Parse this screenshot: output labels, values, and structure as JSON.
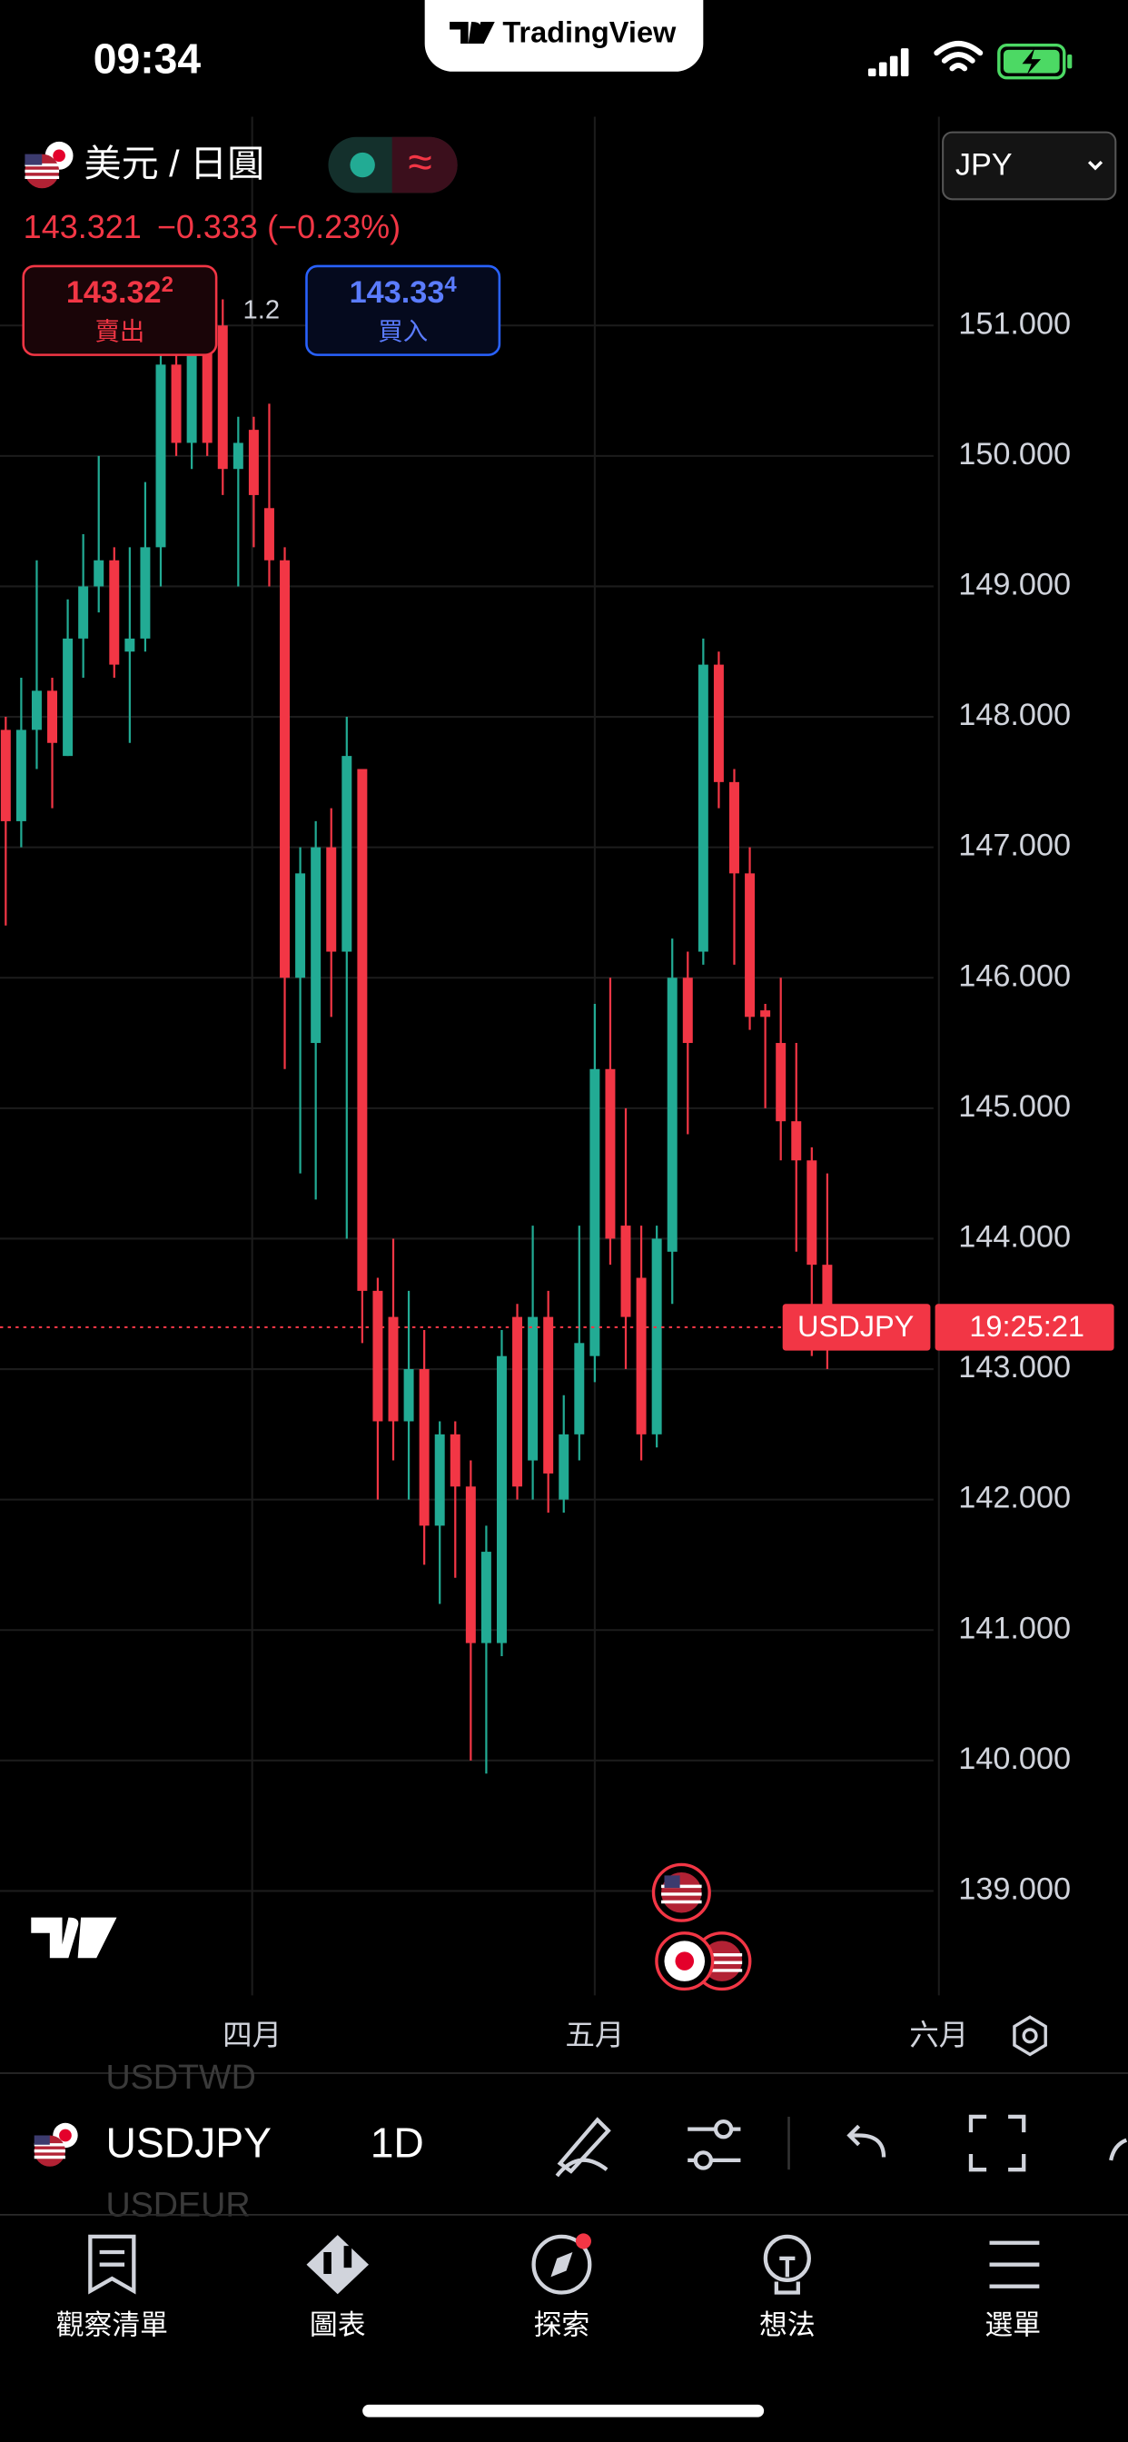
{
  "status_bar": {
    "time": "09:34"
  },
  "notch": {
    "brand": "TradingView"
  },
  "header": {
    "symbol_name": "美元 / 日圓",
    "change": "−0.333",
    "change_percent": "(−0.23%)",
    "sell": {
      "price": "143.32",
      "pip": "2",
      "label": "賣出"
    },
    "spread": "1.2",
    "buy": {
      "price": "143.33",
      "pip": "4",
      "label": "買入"
    },
    "currency": "JPY"
  },
  "chart_data": {
    "type": "candlestick",
    "open": [
      147.9,
      147.2,
      147.9,
      148.2,
      147.7,
      148.6,
      149.0,
      149.2,
      148.5,
      148.6,
      149.3,
      150.7,
      150.1,
      150.8,
      151.0,
      149.9,
      150.2,
      149.6,
      149.2,
      146.0,
      145.5,
      147.0,
      146.2,
      147.6,
      143.6,
      143.4,
      142.6,
      143.0,
      141.8,
      142.5,
      142.1,
      140.9,
      140.9,
      143.4,
      142.3,
      143.4,
      142.0,
      142.5,
      143.1,
      145.3,
      144.1,
      143.7,
      142.5,
      143.9,
      146.0,
      146.2,
      148.4,
      147.5,
      146.8,
      145.75,
      145.5,
      144.9,
      144.6,
      143.8
    ],
    "high": [
      148.0,
      148.3,
      149.2,
      148.3,
      148.9,
      149.4,
      150.0,
      149.3,
      149.3,
      149.8,
      150.9,
      151.2,
      150.9,
      151.2,
      151.2,
      150.3,
      150.3,
      150.4,
      149.3,
      147.0,
      147.2,
      147.3,
      148.0,
      147.6,
      143.7,
      144.0,
      143.6,
      143.3,
      142.6,
      142.6,
      142.3,
      141.8,
      143.3,
      143.5,
      144.1,
      143.6,
      142.8,
      144.1,
      145.8,
      146.0,
      145.0,
      144.1,
      144.1,
      146.3,
      146.2,
      148.6,
      148.5,
      147.6,
      147.0,
      145.8,
      146.0,
      145.5,
      144.7,
      144.5
    ],
    "low": [
      146.4,
      147.0,
      147.6,
      147.3,
      147.7,
      148.3,
      148.8,
      148.3,
      147.8,
      148.5,
      149.0,
      150.0,
      149.9,
      150.0,
      149.7,
      149.0,
      149.3,
      149.0,
      145.3,
      144.5,
      144.3,
      145.7,
      144.0,
      143.2,
      142.0,
      142.3,
      142.0,
      141.5,
      141.2,
      141.4,
      140.0,
      139.9,
      140.8,
      142.0,
      142.0,
      141.9,
      141.9,
      142.3,
      142.9,
      143.8,
      143.0,
      142.3,
      142.4,
      143.5,
      144.8,
      146.1,
      147.3,
      146.1,
      145.6,
      145.0,
      144.6,
      143.9,
      143.1,
      143.0
    ],
    "close": [
      147.2,
      147.9,
      148.2,
      147.8,
      148.6,
      149.0,
      149.2,
      148.4,
      148.6,
      149.3,
      150.7,
      150.1,
      150.8,
      150.1,
      149.9,
      150.1,
      149.7,
      149.2,
      146.0,
      146.8,
      147.0,
      146.2,
      147.7,
      143.6,
      142.6,
      142.6,
      143.0,
      141.8,
      142.5,
      142.1,
      140.9,
      141.6,
      143.1,
      142.1,
      143.4,
      142.2,
      142.5,
      143.2,
      145.3,
      144.0,
      143.4,
      142.5,
      144.0,
      146.0,
      145.5,
      148.4,
      147.5,
      146.8,
      145.7,
      145.7,
      144.9,
      144.6,
      143.8,
      143.321
    ],
    "up_color": "#22ab94",
    "down_color": "#f23645",
    "last_price": 143.321,
    "last_symbol": "USDJPY",
    "countdown": "19:25:21",
    "ylim": [
      138.2,
      152.6
    ],
    "yticks": [
      {
        "value": 139,
        "label": "139.000"
      },
      {
        "value": 140,
        "label": "140.000"
      },
      {
        "value": 141,
        "label": "141.000"
      },
      {
        "value": 142,
        "label": "142.000"
      },
      {
        "value": 143,
        "label": "143.000"
      },
      {
        "value": 144,
        "label": "144.000"
      },
      {
        "value": 145,
        "label": "145.000"
      },
      {
        "value": 146,
        "label": "146.000"
      },
      {
        "value": 147,
        "label": "147.000"
      },
      {
        "value": 148,
        "label": "148.000"
      },
      {
        "value": 149,
        "label": "149.000"
      },
      {
        "value": 150,
        "label": "150.000"
      },
      {
        "value": 151,
        "label": "151.000"
      }
    ],
    "xlim": [
      -0.37,
      72.4
    ],
    "xticks": [
      {
        "value": 15.9,
        "label": "四月"
      },
      {
        "value": 38.0,
        "label": "五月"
      },
      {
        "value": 60.2,
        "label": "六月"
      }
    ],
    "grid": true
  },
  "toolbar": {
    "prev_symbol": "USDTWD",
    "symbol": "USDJPY",
    "next_symbol": "USDEUR",
    "interval": "1D"
  },
  "nav": [
    "觀察清單",
    "圖表",
    "探索",
    "想法",
    "選單"
  ]
}
